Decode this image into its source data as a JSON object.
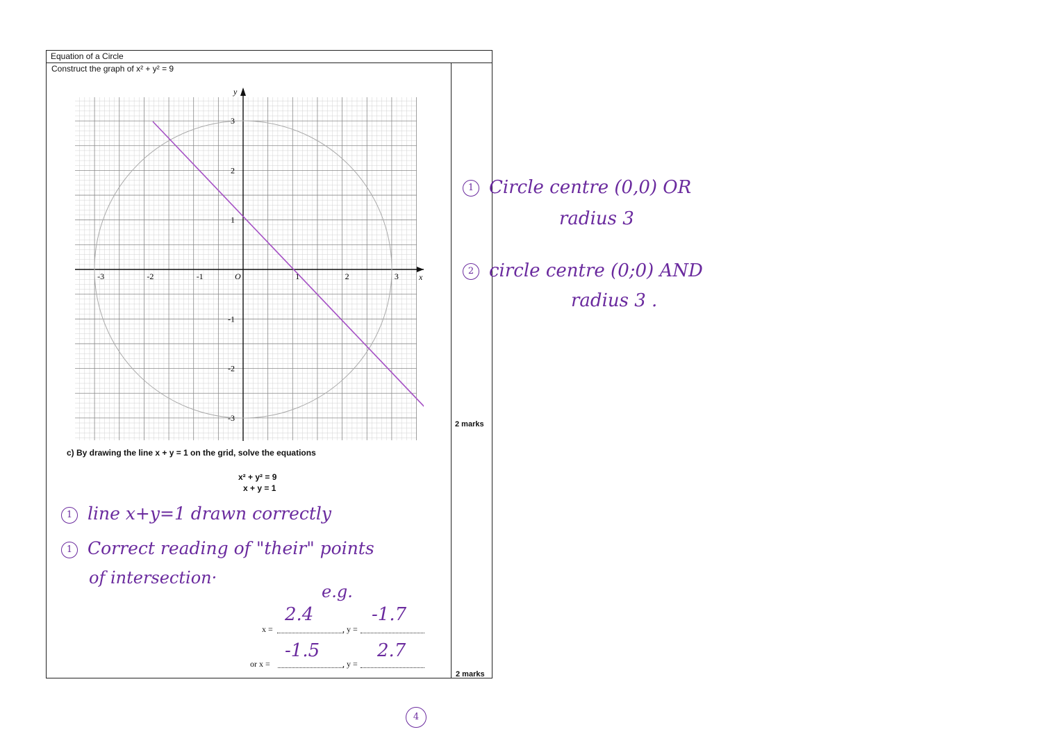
{
  "header": {
    "title": "Equation of a Circle",
    "instruction": "Construct the graph of x² + y² = 9"
  },
  "graph": {
    "y_axis_label": "y",
    "x_axis_label": "x",
    "x_tick_labels": [
      "-3",
      "-2",
      "-1",
      "O",
      "1",
      "2",
      "3"
    ],
    "y_tick_labels": [
      "3",
      "2",
      "1",
      "-1",
      "-2",
      "-3"
    ],
    "line_color": "#a44fc4",
    "circle_color": "#aaaaaa"
  },
  "marks": {
    "part_b": "2 marks",
    "part_c": "2 marks"
  },
  "question_c": {
    "text": "c)   By drawing the line x + y = 1 on the grid, solve the equations",
    "eq1": "x² + y² = 9",
    "eq2": "x + y = 1",
    "x_label": "x =",
    "y_label": ", y =",
    "or_x_label": "or  x =",
    "y_label_2": ", y ="
  },
  "handwriting": {
    "color": "#6a2a9e",
    "right_note_1_num": "1",
    "right_note_1_line1": "Circle centre (0,0)  OR",
    "right_note_1_line2": "radius 3",
    "right_note_2_num": "2",
    "right_note_2_line1": "circle centre (0;0) AND",
    "right_note_2_line2": "radius 3 .",
    "c_note_1_num": "1",
    "c_note_1": "line x+y=1  drawn  correctly",
    "c_note_2_num": "1",
    "c_note_2": "Correct  reading  of  \"their\"  points",
    "c_note_3": "of  intersection·",
    "eg": "e.g.",
    "x1": "2.4",
    "y1": "-1.7",
    "x2": "-1.5",
    "y2": "2.7",
    "total": "4"
  }
}
